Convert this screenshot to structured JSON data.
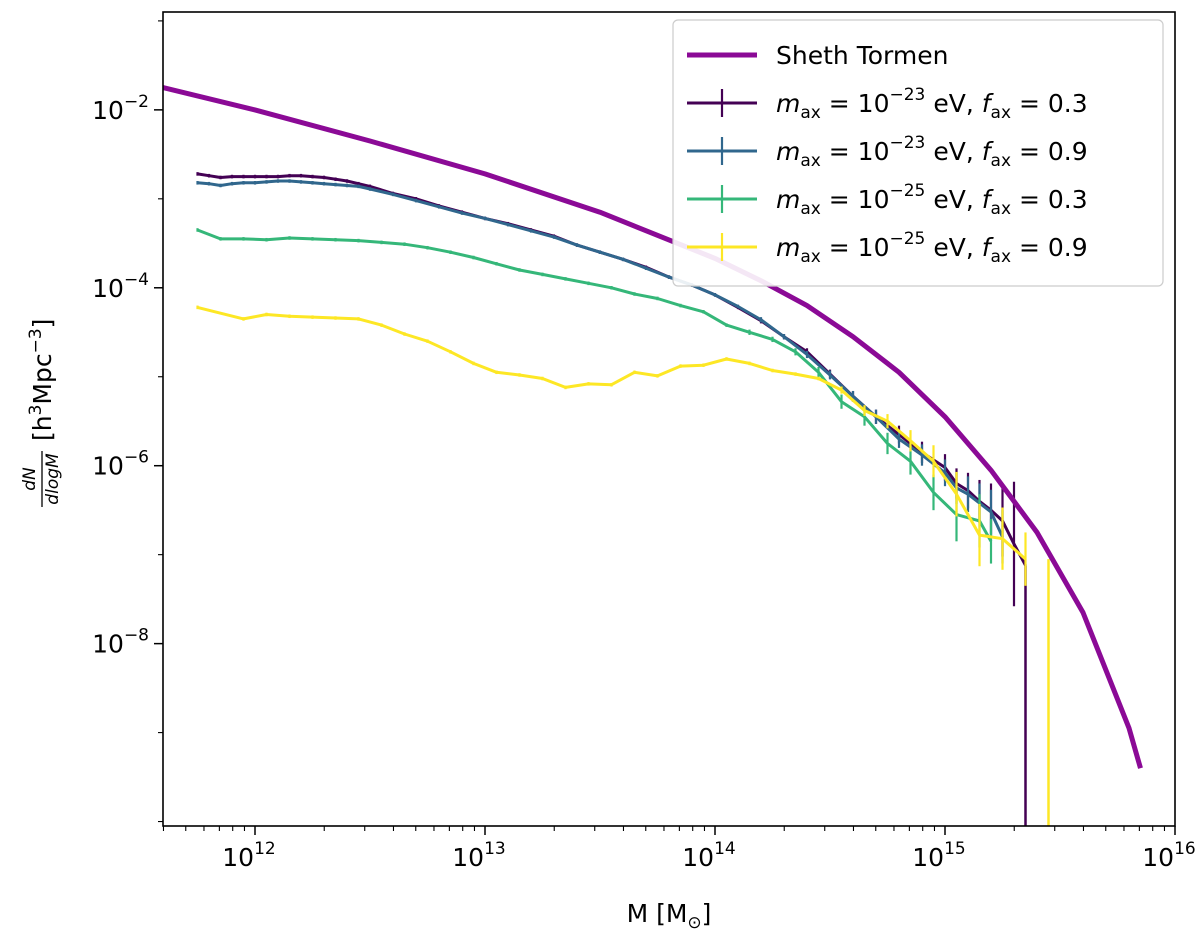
{
  "chart_data": {
    "type": "line",
    "title": "",
    "x_scale": "log",
    "y_scale": "log",
    "xlim_log10": [
      11.6,
      16.0
    ],
    "ylim_log10": [
      -10.05,
      -0.9
    ],
    "xlabel": {
      "text": "M [M",
      "sub": "⊙",
      "close": "]"
    },
    "ylabel": {
      "num": "dN",
      "den": "dlogM",
      "unit_pre": "[h",
      "unit_sup1": "3",
      "unit_mid": "Mpc",
      "unit_sup2": "−3",
      "unit_post": "]"
    },
    "x_ticks": [
      {
        "log": 12,
        "base": "10",
        "exp": "12"
      },
      {
        "log": 13,
        "base": "10",
        "exp": "13"
      },
      {
        "log": 14,
        "base": "10",
        "exp": "14"
      },
      {
        "log": 15,
        "base": "10",
        "exp": "15"
      },
      {
        "log": 16,
        "base": "10",
        "exp": "16"
      }
    ],
    "y_ticks": [
      {
        "log": -2,
        "base": "10",
        "exp": "−2"
      },
      {
        "log": -4,
        "base": "10",
        "exp": "−4"
      },
      {
        "log": -6,
        "base": "10",
        "exp": "−6"
      },
      {
        "log": -8,
        "base": "10",
        "exp": "−8"
      }
    ],
    "legend_position": "top-right",
    "series": [
      {
        "name": "Sheth Tormen",
        "legend": {
          "plain": "Sheth Tormen"
        },
        "color": "#8b0a96",
        "kind": "line",
        "log_x": [
          11.6,
          12.0,
          12.5,
          13.0,
          13.5,
          14.0,
          14.2,
          14.4,
          14.6,
          14.8,
          15.0,
          15.2,
          15.4,
          15.6,
          15.8,
          15.85
        ],
        "log_y": [
          -1.75,
          -2.0,
          -2.35,
          -2.72,
          -3.15,
          -3.67,
          -3.92,
          -4.2,
          -4.55,
          -4.95,
          -5.45,
          -6.05,
          -6.75,
          -7.65,
          -8.95,
          -9.4
        ]
      },
      {
        "name": "m_ax = 10^-23 eV, f_ax = 0.3",
        "legend": {
          "m_exp": "−23",
          "f_val": "0.3"
        },
        "color": "#440154",
        "kind": "errorbar",
        "log_x": [
          11.75,
          11.8,
          11.85,
          11.9,
          11.95,
          12.0,
          12.05,
          12.1,
          12.15,
          12.2,
          12.25,
          12.3,
          12.35,
          12.4,
          12.45,
          12.5,
          12.6,
          12.7,
          12.8,
          12.9,
          13.0,
          13.1,
          13.2,
          13.3,
          13.4,
          13.5,
          13.6,
          13.7,
          13.8,
          13.9,
          14.0,
          14.1,
          14.2,
          14.3,
          14.4,
          14.5,
          14.6,
          14.7,
          14.8,
          14.9,
          15.0,
          15.05,
          15.1,
          15.15,
          15.2,
          15.25,
          15.3,
          15.35
        ],
        "log_y": [
          -2.72,
          -2.74,
          -2.76,
          -2.75,
          -2.75,
          -2.75,
          -2.75,
          -2.75,
          -2.74,
          -2.74,
          -2.75,
          -2.76,
          -2.78,
          -2.8,
          -2.83,
          -2.86,
          -2.94,
          -3.0,
          -3.08,
          -3.15,
          -3.22,
          -3.28,
          -3.35,
          -3.42,
          -3.52,
          -3.6,
          -3.68,
          -3.77,
          -3.88,
          -3.97,
          -4.08,
          -4.22,
          -4.37,
          -4.55,
          -4.72,
          -4.97,
          -5.22,
          -5.45,
          -5.65,
          -5.85,
          -6.02,
          -6.2,
          -6.28,
          -6.4,
          -6.5,
          -6.62,
          -6.88,
          -7.12
        ],
        "log_err": [
          0.02,
          0.02,
          0.02,
          0.02,
          0.02,
          0.02,
          0.02,
          0.02,
          0.02,
          0.02,
          0.02,
          0.02,
          0.02,
          0.02,
          0.02,
          0.02,
          0.02,
          0.02,
          0.02,
          0.02,
          0.02,
          0.02,
          0.02,
          0.02,
          0.02,
          0.02,
          0.02,
          0.02,
          0.02,
          0.02,
          0.02,
          0.02,
          0.03,
          0.03,
          0.04,
          0.05,
          0.06,
          0.08,
          0.1,
          0.12,
          0.15,
          0.17,
          0.2,
          0.24,
          0.3,
          0.4,
          0.7,
          0.0
        ],
        "tail": {
          "log_x": 15.35,
          "log_y_top": -7.12,
          "log_y_bottom": -10.05
        }
      },
      {
        "name": "m_ax = 10^-23 eV, f_ax = 0.9",
        "legend": {
          "m_exp": "−23",
          "f_val": "0.9"
        },
        "color": "#30678d",
        "kind": "errorbar",
        "log_x": [
          11.75,
          11.8,
          11.85,
          11.9,
          11.95,
          12.0,
          12.05,
          12.1,
          12.15,
          12.2,
          12.25,
          12.3,
          12.35,
          12.4,
          12.45,
          12.5,
          12.6,
          12.7,
          12.8,
          12.9,
          13.0,
          13.1,
          13.2,
          13.3,
          13.4,
          13.5,
          13.6,
          13.7,
          13.8,
          13.9,
          14.0,
          14.1,
          14.2,
          14.3,
          14.4,
          14.5,
          14.6,
          14.7,
          14.8,
          14.9,
          15.0,
          15.05,
          15.1,
          15.15,
          15.2,
          15.25
        ],
        "log_y": [
          -2.82,
          -2.83,
          -2.85,
          -2.83,
          -2.82,
          -2.82,
          -2.81,
          -2.8,
          -2.8,
          -2.81,
          -2.82,
          -2.83,
          -2.84,
          -2.85,
          -2.86,
          -2.89,
          -2.95,
          -3.02,
          -3.09,
          -3.16,
          -3.22,
          -3.29,
          -3.36,
          -3.43,
          -3.52,
          -3.6,
          -3.68,
          -3.78,
          -3.88,
          -3.97,
          -4.08,
          -4.21,
          -4.36,
          -4.55,
          -4.75,
          -4.98,
          -5.22,
          -5.45,
          -5.7,
          -5.88,
          -6.08,
          -6.25,
          -6.32,
          -6.42,
          -6.52,
          -6.8
        ],
        "log_err": [
          0.02,
          0.02,
          0.02,
          0.02,
          0.02,
          0.02,
          0.02,
          0.02,
          0.02,
          0.02,
          0.02,
          0.02,
          0.02,
          0.02,
          0.02,
          0.02,
          0.02,
          0.02,
          0.02,
          0.02,
          0.02,
          0.02,
          0.02,
          0.02,
          0.02,
          0.02,
          0.02,
          0.02,
          0.02,
          0.02,
          0.02,
          0.02,
          0.03,
          0.03,
          0.04,
          0.05,
          0.06,
          0.08,
          0.1,
          0.12,
          0.15,
          0.18,
          0.2,
          0.22,
          0.25,
          0.3
        ]
      },
      {
        "name": "m_ax = 10^-25 eV, f_ax = 0.3",
        "legend": {
          "m_exp": "−25",
          "f_val": "0.3"
        },
        "color": "#35b779",
        "kind": "errorbar",
        "log_x": [
          11.75,
          11.85,
          11.95,
          12.05,
          12.15,
          12.25,
          12.35,
          12.45,
          12.55,
          12.65,
          12.75,
          12.85,
          12.95,
          13.05,
          13.15,
          13.25,
          13.35,
          13.45,
          13.55,
          13.65,
          13.75,
          13.85,
          13.95,
          14.05,
          14.15,
          14.25,
          14.35,
          14.45,
          14.55,
          14.65,
          14.75,
          14.85,
          14.95,
          15.05,
          15.15,
          15.2
        ],
        "log_y": [
          -3.35,
          -3.45,
          -3.45,
          -3.46,
          -3.44,
          -3.45,
          -3.46,
          -3.47,
          -3.49,
          -3.51,
          -3.55,
          -3.6,
          -3.66,
          -3.73,
          -3.8,
          -3.85,
          -3.9,
          -3.95,
          -4.0,
          -4.07,
          -4.12,
          -4.2,
          -4.27,
          -4.42,
          -4.5,
          -4.58,
          -4.72,
          -4.95,
          -5.28,
          -5.45,
          -5.75,
          -5.95,
          -6.3,
          -6.55,
          -6.62,
          -6.85
        ],
        "log_err": [
          0.02,
          0.02,
          0.02,
          0.02,
          0.02,
          0.02,
          0.02,
          0.02,
          0.02,
          0.02,
          0.02,
          0.02,
          0.02,
          0.02,
          0.02,
          0.02,
          0.02,
          0.02,
          0.02,
          0.02,
          0.02,
          0.02,
          0.02,
          0.02,
          0.03,
          0.03,
          0.04,
          0.06,
          0.08,
          0.1,
          0.12,
          0.15,
          0.2,
          0.3,
          0.3,
          0.25
        ]
      },
      {
        "name": "m_ax = 10^-25 eV, f_ax = 0.9",
        "legend": {
          "m_exp": "−25",
          "f_val": "0.9"
        },
        "color": "#fde725",
        "kind": "errorbar",
        "log_x": [
          11.75,
          11.95,
          12.05,
          12.15,
          12.25,
          12.35,
          12.45,
          12.55,
          12.65,
          12.75,
          12.85,
          12.95,
          13.05,
          13.15,
          13.25,
          13.35,
          13.45,
          13.55,
          13.65,
          13.75,
          13.85,
          13.95,
          14.05,
          14.15,
          14.25,
          14.35,
          14.45,
          14.55,
          14.65,
          14.75,
          14.85,
          14.95,
          15.05,
          15.15,
          15.25,
          15.35
        ],
        "log_y": [
          -4.22,
          -4.35,
          -4.3,
          -4.32,
          -4.33,
          -4.34,
          -4.35,
          -4.42,
          -4.52,
          -4.6,
          -4.72,
          -4.85,
          -4.95,
          -4.98,
          -5.02,
          -5.12,
          -5.08,
          -5.09,
          -4.95,
          -4.99,
          -4.88,
          -4.87,
          -4.8,
          -4.85,
          -4.93,
          -4.97,
          -5.02,
          -5.15,
          -5.38,
          -5.5,
          -5.72,
          -5.95,
          -6.32,
          -6.78,
          -6.82,
          -7.05
        ],
        "log_err": [
          0.02,
          0.02,
          0.02,
          0.02,
          0.02,
          0.02,
          0.02,
          0.02,
          0.02,
          0.02,
          0.02,
          0.02,
          0.02,
          0.02,
          0.02,
          0.02,
          0.02,
          0.02,
          0.02,
          0.02,
          0.02,
          0.02,
          0.02,
          0.02,
          0.02,
          0.02,
          0.02,
          0.04,
          0.06,
          0.08,
          0.12,
          0.18,
          0.25,
          0.35,
          0.35,
          0.3
        ],
        "tail": {
          "log_x": 15.45,
          "log_y_top": -7.05,
          "log_y_bottom": -10.05
        }
      }
    ]
  }
}
